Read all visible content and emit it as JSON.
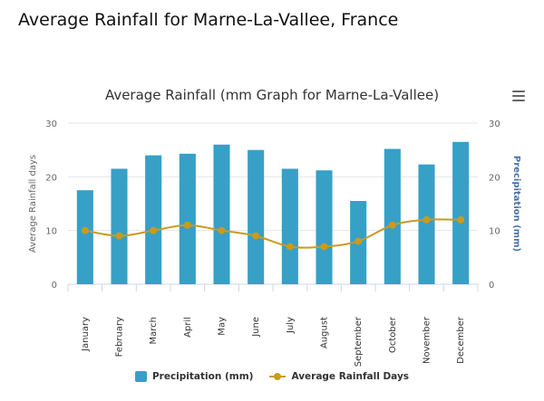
{
  "page": {
    "heading": "Average Rainfall for Marne-La-Vallee, France"
  },
  "colors": {
    "bar": "#37a0c6",
    "line": "#c99b1e",
    "grid": "#e6e6e6",
    "axis_text": "#666666",
    "right_axis_title": "#4572a7"
  },
  "menu": {
    "icon": "hamburger-menu-icon"
  },
  "legend": {
    "bar_label": "Precipitation (mm)",
    "line_label": "Average Rainfall Days"
  },
  "chart_data": {
    "type": "bar",
    "title": "Average Rainfall (mm Graph for Marne-La-Vallee)",
    "categories": [
      "January",
      "February",
      "March",
      "April",
      "May",
      "June",
      "July",
      "August",
      "September",
      "October",
      "November",
      "December"
    ],
    "series": [
      {
        "name": "Precipitation (mm)",
        "type": "bar",
        "axis": "right",
        "values": [
          17.5,
          21.5,
          24,
          24.3,
          26,
          25,
          21.5,
          21.2,
          15.5,
          25.2,
          22.3,
          26.5
        ]
      },
      {
        "name": "Average Rainfall Days",
        "type": "line",
        "axis": "left",
        "values": [
          10,
          9,
          10,
          11,
          10,
          9,
          7,
          7,
          8,
          11,
          12,
          12
        ]
      }
    ],
    "yaxis_left": {
      "label": "Average Rainfall days",
      "range": [
        0,
        30
      ],
      "ticks": [
        "0",
        "10",
        "20",
        "30"
      ]
    },
    "yaxis_right": {
      "label": "Precipitation (mm)",
      "range": [
        0,
        30
      ],
      "ticks": [
        "0",
        "10",
        "20",
        "30"
      ]
    },
    "grid": true,
    "legend_position": "bottom-center"
  }
}
